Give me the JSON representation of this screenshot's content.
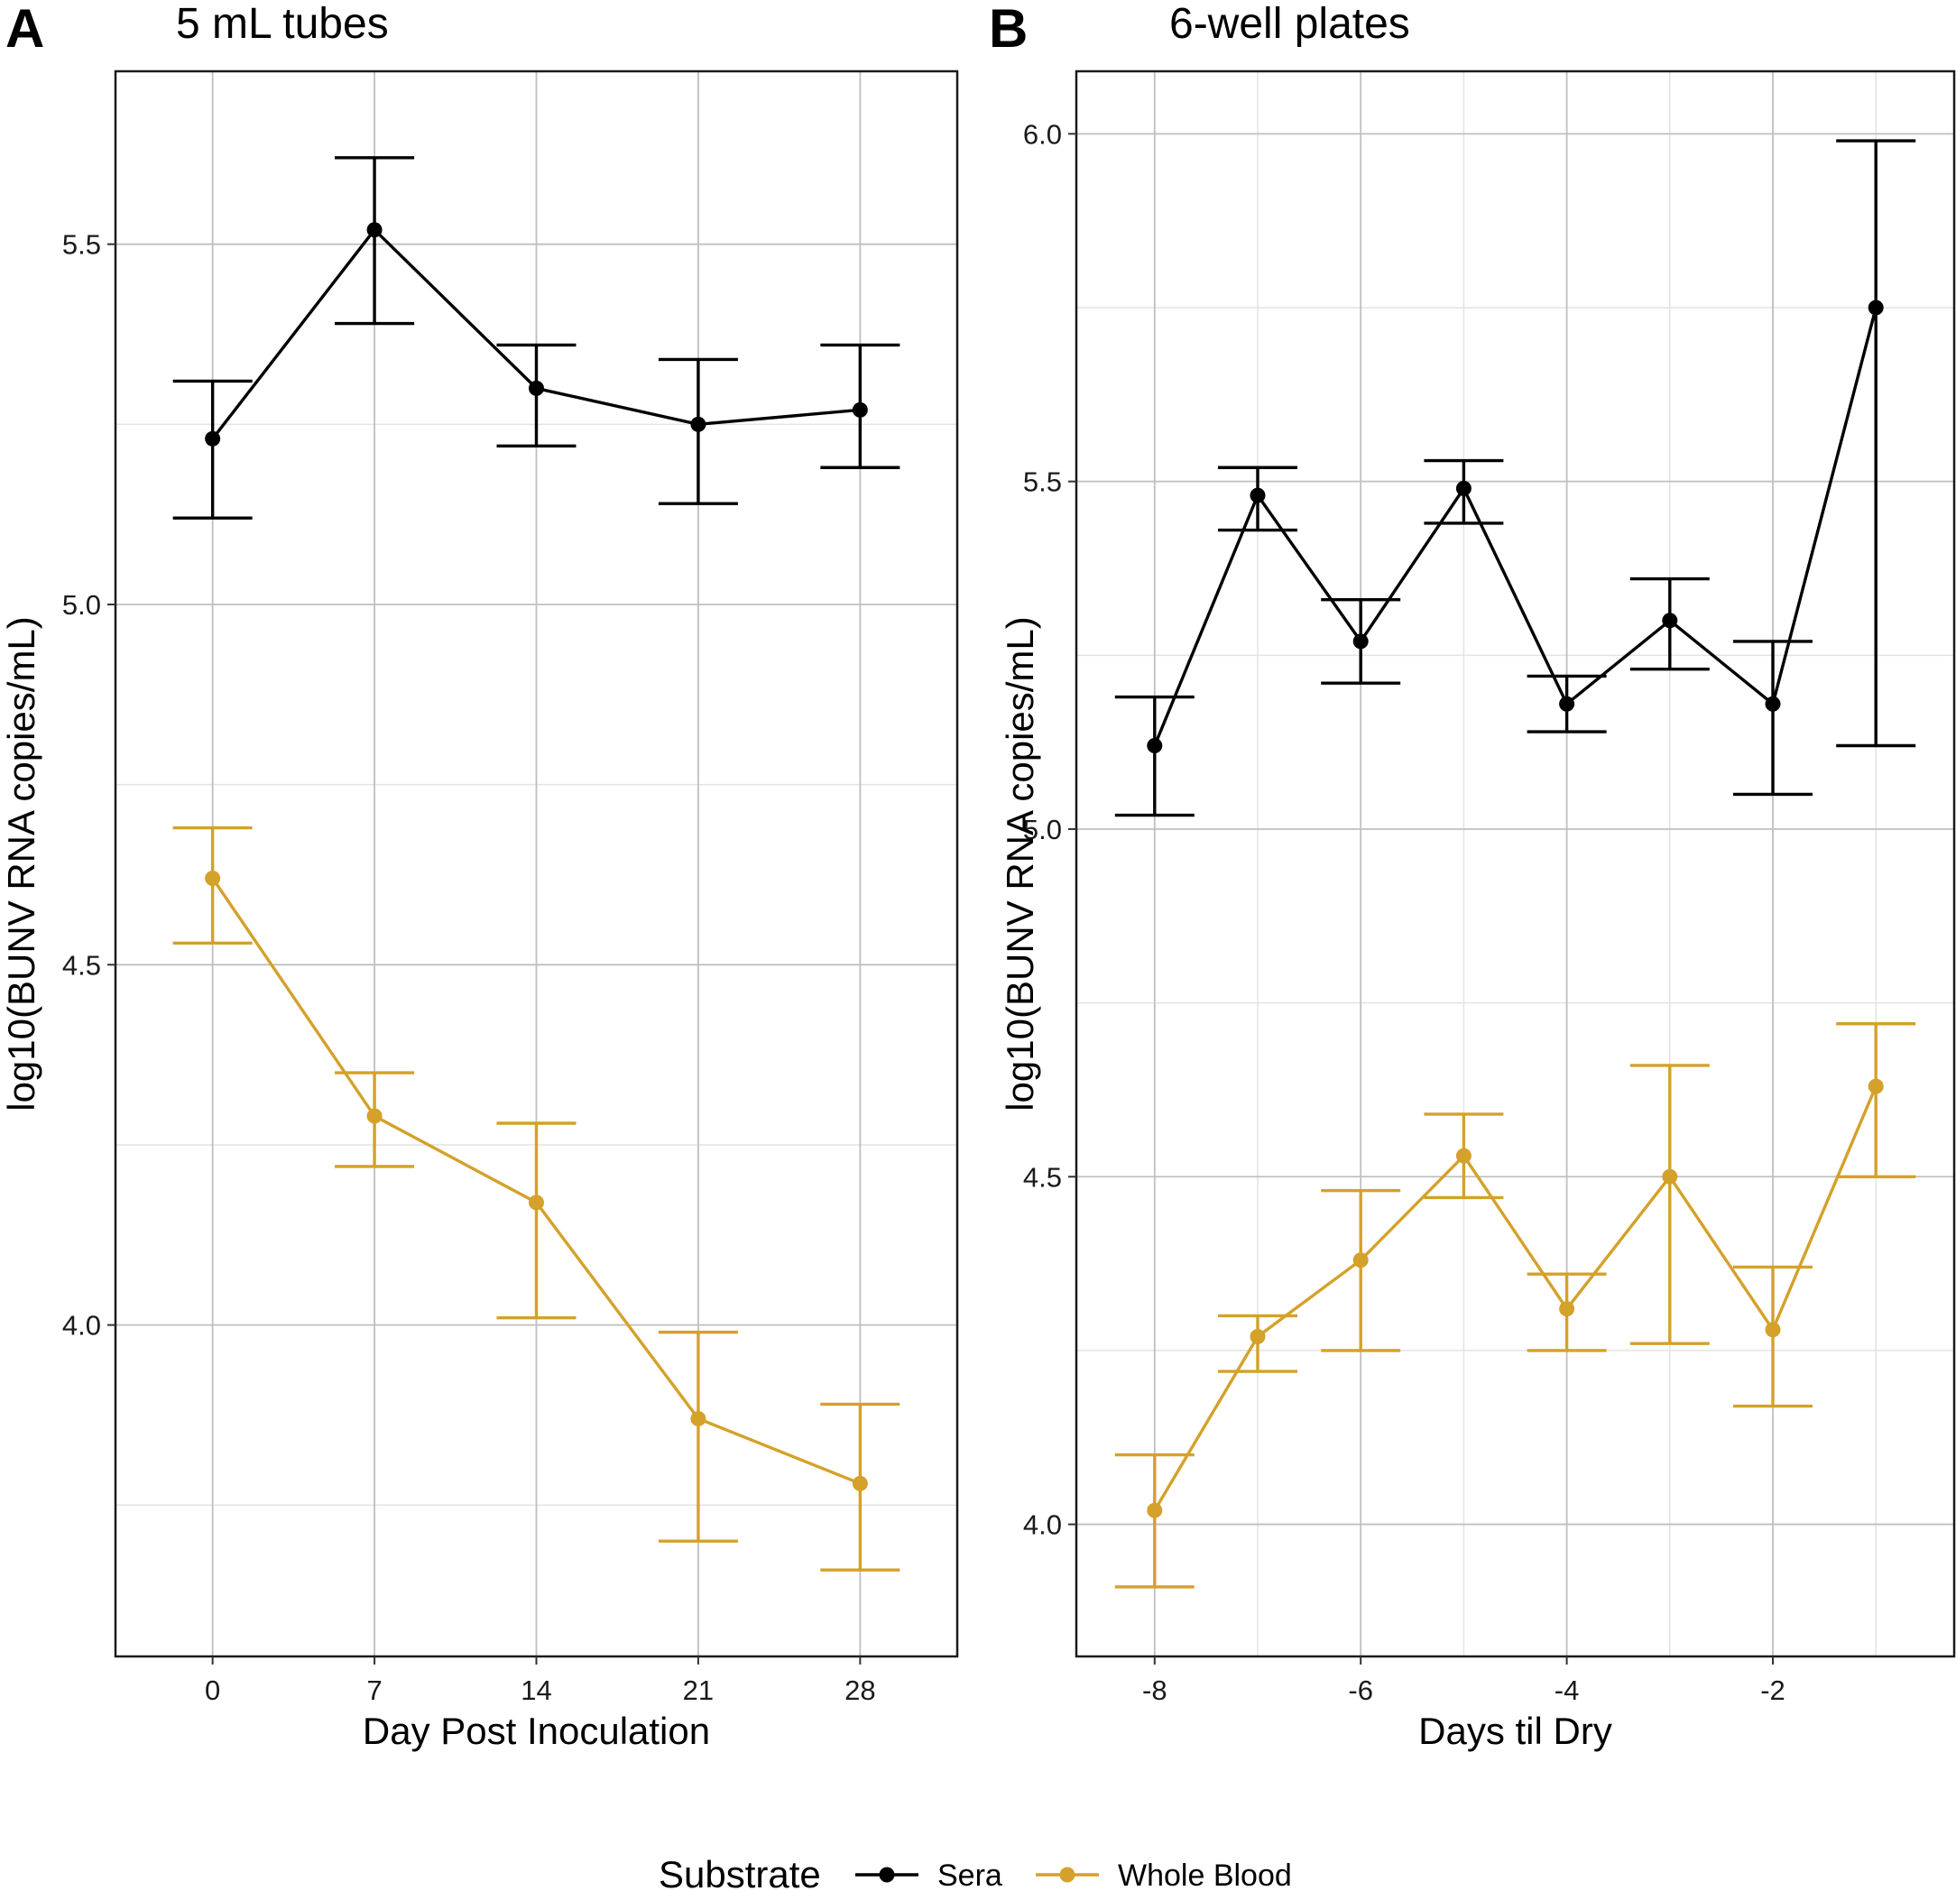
{
  "legend": {
    "title": "Substrate",
    "items": [
      {
        "label": "Sera",
        "color": "#000000"
      },
      {
        "label": "Whole Blood",
        "color": "#D4A12A"
      }
    ]
  },
  "chart_data": [
    {
      "panel": "A",
      "type": "line",
      "title": "5 mL tubes",
      "xlabel": "Day Post Inoculation",
      "ylabel": "log10(BUNV RNA copies/mL)",
      "x": [
        0,
        7,
        14,
        21,
        28
      ],
      "xticks": [
        0,
        7,
        14,
        21,
        28
      ],
      "xtick_labels": [
        "0",
        "7",
        "14",
        "21",
        "28"
      ],
      "xlim": [
        -4.2,
        32.2
      ],
      "ylim": [
        3.54,
        5.74
      ],
      "yticks": [
        4.0,
        4.5,
        5.0,
        5.5
      ],
      "ytick_labels": [
        "4.0",
        "4.5",
        "5.0",
        "5.5"
      ],
      "yminor": [
        3.75,
        4.25,
        4.75,
        5.25
      ],
      "grid": true,
      "series": [
        {
          "name": "Sera",
          "color": "#000000",
          "y": [
            5.23,
            5.52,
            5.3,
            5.25,
            5.27
          ],
          "ymin": [
            5.12,
            5.39,
            5.22,
            5.14,
            5.19
          ],
          "ymax": [
            5.31,
            5.62,
            5.36,
            5.34,
            5.36
          ]
        },
        {
          "name": "Whole Blood",
          "color": "#D4A12A",
          "y": [
            4.62,
            4.29,
            4.17,
            3.87,
            3.78
          ],
          "ymin": [
            4.53,
            4.22,
            4.01,
            3.7,
            3.66
          ],
          "ymax": [
            4.69,
            4.35,
            4.28,
            3.99,
            3.89
          ]
        }
      ]
    },
    {
      "panel": "B",
      "type": "line",
      "title": "6-well plates",
      "xlabel": "Days til Dry",
      "ylabel": "log10(BUNV RNA copies/mL)",
      "x": [
        -8,
        -7,
        -6,
        -5,
        -4,
        -3,
        -2,
        -1
      ],
      "xticks": [
        -8,
        -6,
        -4,
        -2
      ],
      "xtick_labels": [
        "-8",
        "-6",
        "-4",
        "-2"
      ],
      "xminor": [
        -7,
        -5,
        -3,
        -1
      ],
      "xlim": [
        -8.76,
        -0.24
      ],
      "ylim": [
        3.81,
        6.09
      ],
      "yticks": [
        4.0,
        4.5,
        5.0,
        5.5,
        6.0
      ],
      "ytick_labels": [
        "4.0",
        "4.5",
        "5.0",
        "5.5",
        "6.0"
      ],
      "yminor": [
        4.25,
        4.75,
        5.25,
        5.75
      ],
      "grid": true,
      "series": [
        {
          "name": "Sera",
          "color": "#000000",
          "y": [
            5.12,
            5.48,
            5.27,
            5.49,
            5.18,
            5.3,
            5.18,
            5.75
          ],
          "ymin": [
            5.02,
            5.43,
            5.21,
            5.44,
            5.14,
            5.23,
            5.05,
            5.12
          ],
          "ymax": [
            5.19,
            5.52,
            5.33,
            5.53,
            5.22,
            5.36,
            5.27,
            5.99
          ]
        },
        {
          "name": "Whole Blood",
          "color": "#D4A12A",
          "y": [
            4.02,
            4.27,
            4.38,
            4.53,
            4.31,
            4.5,
            4.28,
            4.63
          ],
          "ymin": [
            3.91,
            4.22,
            4.25,
            4.47,
            4.25,
            4.26,
            4.17,
            4.5
          ],
          "ymax": [
            4.1,
            4.3,
            4.48,
            4.59,
            4.36,
            4.66,
            4.37,
            4.72
          ]
        }
      ]
    }
  ]
}
